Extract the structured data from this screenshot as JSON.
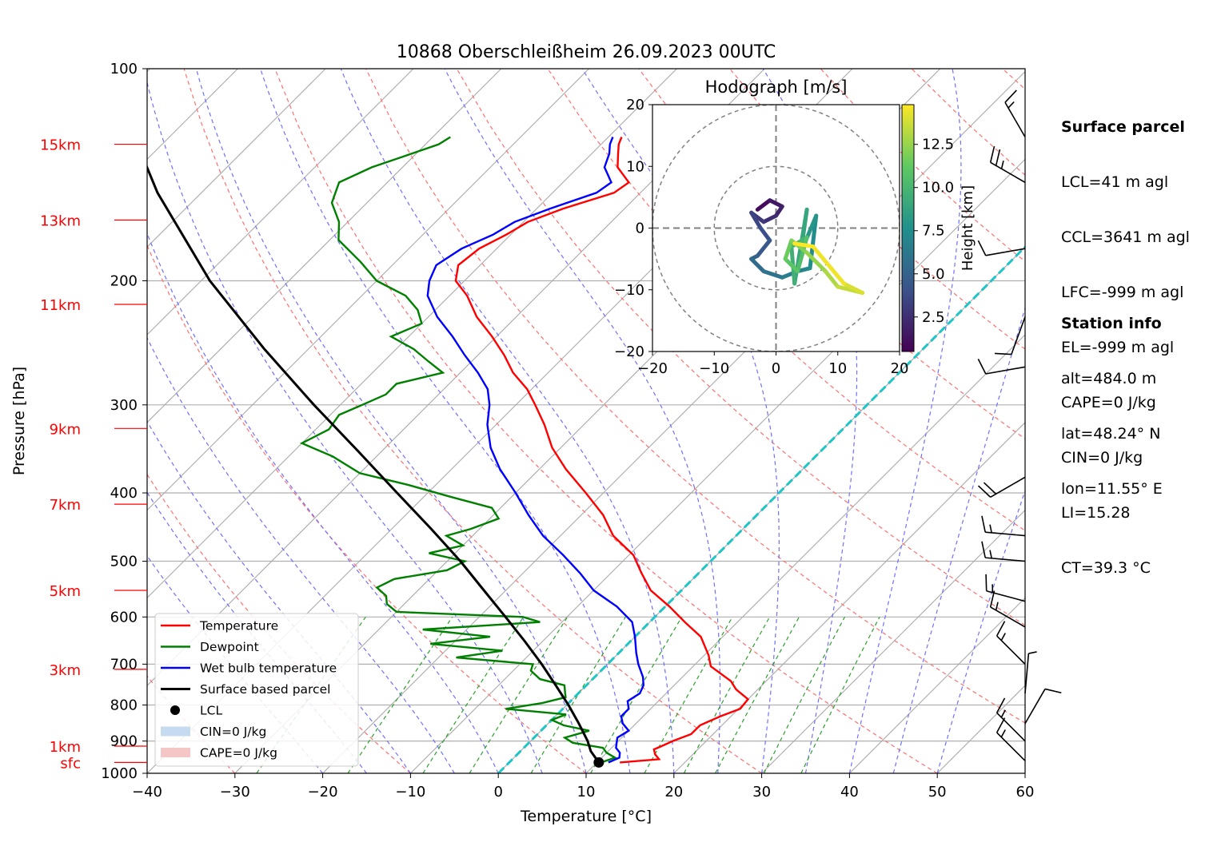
{
  "chart_data": {
    "type": "line",
    "title": "10868 Oberschleißheim 26.09.2023 00UTC",
    "xlabel": "Temperature [°C]",
    "ylabel": "Pressure [hPa]",
    "xlim": [
      -40,
      60
    ],
    "ylim": [
      1000,
      100
    ],
    "y_scale": "log",
    "skew": "skew-T log-p",
    "x_ticks": [
      "−40",
      "−30",
      "−20",
      "−10",
      "0",
      "10",
      "20",
      "30",
      "40",
      "50",
      "60"
    ],
    "y_ticks": [
      "100",
      "200",
      "300",
      "400",
      "500",
      "600",
      "700",
      "800",
      "900",
      "1000"
    ],
    "height_labels": [
      {
        "label": "15km",
        "p": 128
      },
      {
        "label": "13km",
        "p": 164
      },
      {
        "label": "11km",
        "p": 216
      },
      {
        "label": "9km",
        "p": 324
      },
      {
        "label": "7km",
        "p": 415
      },
      {
        "label": "5km",
        "p": 550
      },
      {
        "label": "3km",
        "p": 712
      },
      {
        "label": "1km",
        "p": 915
      },
      {
        "label": "sfc",
        "p": 965
      }
    ],
    "grid": true,
    "legend": {
      "placement": "lower-left",
      "entries": [
        "Temperature",
        "Dewpoint",
        "Wet bulb temperature",
        "Surface based parcel",
        "LCL",
        "CIN=0 J/kg",
        "CAPE=0 J/kg"
      ]
    },
    "colors": {
      "temperature": "#ff0000",
      "dewpoint": "#008000",
      "wetbulb": "#0000ff",
      "parcel": "#000000",
      "dry_adiabat": "#ff7070",
      "moist_adiabat": "#7070ff",
      "mixing_ratio": "#2ca02c",
      "isotherm": "#aaaaaa",
      "zero_isotherm": "#1fc5c5",
      "cin_fill": "#c6dbef",
      "cape_fill": "#f4c6c6"
    },
    "series": [
      {
        "name": "Temperature",
        "color": "#ff0000",
        "points": [
          [
            965,
            12.6
          ],
          [
            955,
            16.7
          ],
          [
            940,
            15.7
          ],
          [
            925,
            15.0
          ],
          [
            915,
            15.5
          ],
          [
            900,
            16.2
          ],
          [
            880,
            17.5
          ],
          [
            855,
            17.5
          ],
          [
            830,
            18.8
          ],
          [
            810,
            20.2
          ],
          [
            785,
            20.0
          ],
          [
            760,
            17.5
          ],
          [
            740,
            16.0
          ],
          [
            705,
            12.0
          ],
          [
            680,
            10.5
          ],
          [
            640,
            7.5
          ],
          [
            610,
            4.0
          ],
          [
            580,
            0.5
          ],
          [
            550,
            -3.5
          ],
          [
            520,
            -6.5
          ],
          [
            490,
            -9.5
          ],
          [
            460,
            -14.0
          ],
          [
            430,
            -17.5
          ],
          [
            400,
            -22.0
          ],
          [
            370,
            -27.0
          ],
          [
            345,
            -31.0
          ],
          [
            320,
            -34.5
          ],
          [
            300,
            -37.8
          ],
          [
            285,
            -40.5
          ],
          [
            270,
            -44.0
          ],
          [
            255,
            -47.0
          ],
          [
            240,
            -50.5
          ],
          [
            225,
            -54.5
          ],
          [
            210,
            -58.0
          ],
          [
            200,
            -61.0
          ],
          [
            190,
            -62.5
          ],
          [
            180,
            -62.0
          ],
          [
            172,
            -60.5
          ],
          [
            165,
            -59.5
          ],
          [
            158,
            -57.0
          ],
          [
            150,
            -53.0
          ],
          [
            145,
            -52.5
          ],
          [
            138,
            -55.5
          ],
          [
            132,
            -57.0
          ],
          [
            128,
            -58.0
          ],
          [
            125,
            -58.5
          ]
        ]
      },
      {
        "name": "Dewpoint",
        "color": "#008000",
        "points": [
          [
            965,
            10.5
          ],
          [
            950,
            11.5
          ],
          [
            935,
            10.0
          ],
          [
            920,
            9.0
          ],
          [
            905,
            5.0
          ],
          [
            890,
            3.5
          ],
          [
            870,
            5.5
          ],
          [
            855,
            2.0
          ],
          [
            840,
            0.0
          ],
          [
            825,
            1.0
          ],
          [
            810,
            -6.5
          ],
          [
            795,
            -3.0
          ],
          [
            780,
            -1.0
          ],
          [
            770,
            -1.5
          ],
          [
            750,
            -2.5
          ],
          [
            735,
            -6.0
          ],
          [
            715,
            -8.0
          ],
          [
            700,
            -8.5
          ],
          [
            685,
            -18.0
          ],
          [
            670,
            -13.5
          ],
          [
            655,
            -22.5
          ],
          [
            640,
            -16.5
          ],
          [
            625,
            -25.0
          ],
          [
            610,
            -12.5
          ],
          [
            600,
            -15.0
          ],
          [
            590,
            -30.0
          ],
          [
            575,
            -32.0
          ],
          [
            560,
            -33.0
          ],
          [
            545,
            -35.0
          ],
          [
            530,
            -34.0
          ],
          [
            515,
            -29.0
          ],
          [
            500,
            -28.0
          ],
          [
            487,
            -33.0
          ],
          [
            475,
            -30.0
          ],
          [
            460,
            -33.0
          ],
          [
            450,
            -31.0
          ],
          [
            435,
            -29.0
          ],
          [
            420,
            -31.0
          ],
          [
            405,
            -37.0
          ],
          [
            390,
            -43.0
          ],
          [
            375,
            -50.0
          ],
          [
            355,
            -55.0
          ],
          [
            340,
            -60.0
          ],
          [
            325,
            -58.5
          ],
          [
            310,
            -59.0
          ],
          [
            300,
            -57.5
          ],
          [
            290,
            -56.0
          ],
          [
            280,
            -56.0
          ],
          [
            270,
            -52.0
          ],
          [
            260,
            -55.0
          ],
          [
            250,
            -58.0
          ],
          [
            240,
            -62.0
          ],
          [
            230,
            -60.0
          ],
          [
            220,
            -62.0
          ],
          [
            210,
            -65.0
          ],
          [
            200,
            -70.0
          ],
          [
            188,
            -74.0
          ],
          [
            175,
            -79.0
          ],
          [
            165,
            -81.0
          ],
          [
            155,
            -84.0
          ],
          [
            145,
            -85.5
          ],
          [
            138,
            -83.5
          ],
          [
            132,
            -80.5
          ],
          [
            128,
            -78.5
          ],
          [
            125,
            -78.0
          ]
        ]
      },
      {
        "name": "Wet bulb temperature",
        "color": "#0000ff",
        "points": [
          [
            965,
            11.3
          ],
          [
            950,
            12.0
          ],
          [
            935,
            11.5
          ],
          [
            920,
            10.5
          ],
          [
            905,
            10.0
          ],
          [
            890,
            9.5
          ],
          [
            870,
            10.0
          ],
          [
            850,
            8.5
          ],
          [
            830,
            7.5
          ],
          [
            810,
            7.5
          ],
          [
            790,
            6.5
          ],
          [
            770,
            7.0
          ],
          [
            750,
            6.5
          ],
          [
            730,
            5.5
          ],
          [
            700,
            3.5
          ],
          [
            675,
            2.0
          ],
          [
            640,
            0.0
          ],
          [
            610,
            -2.0
          ],
          [
            580,
            -5.5
          ],
          [
            550,
            -10.0
          ],
          [
            520,
            -13.5
          ],
          [
            490,
            -17.5
          ],
          [
            460,
            -22.0
          ],
          [
            430,
            -26.0
          ],
          [
            400,
            -30.0
          ],
          [
            370,
            -34.5
          ],
          [
            345,
            -38.0
          ],
          [
            320,
            -41.0
          ],
          [
            300,
            -43.0
          ],
          [
            285,
            -45.0
          ],
          [
            270,
            -48.0
          ],
          [
            255,
            -51.5
          ],
          [
            240,
            -55.0
          ],
          [
            225,
            -59.0
          ],
          [
            210,
            -62.5
          ],
          [
            200,
            -64.0
          ],
          [
            190,
            -65.0
          ],
          [
            180,
            -64.0
          ],
          [
            172,
            -62.0
          ],
          [
            165,
            -61.0
          ],
          [
            158,
            -58.5
          ],
          [
            150,
            -55.0
          ],
          [
            145,
            -54.5
          ],
          [
            138,
            -57.0
          ],
          [
            132,
            -58.0
          ],
          [
            128,
            -59.0
          ],
          [
            125,
            -59.5
          ]
        ]
      },
      {
        "name": "Surface based parcel",
        "color": "#000000",
        "points": [
          [
            965,
            10.2
          ],
          [
            930,
            8.0
          ],
          [
            900,
            6.5
          ],
          [
            850,
            3.5
          ],
          [
            800,
            0.2
          ],
          [
            750,
            -3.5
          ],
          [
            700,
            -7.5
          ],
          [
            650,
            -12.0
          ],
          [
            600,
            -17.0
          ],
          [
            550,
            -22.5
          ],
          [
            500,
            -28.5
          ],
          [
            450,
            -35.5
          ],
          [
            400,
            -43.5
          ],
          [
            350,
            -52.5
          ],
          [
            300,
            -63.0
          ],
          [
            250,
            -75.0
          ],
          [
            200,
            -89.0
          ],
          [
            150,
            -105.0
          ],
          [
            120,
            -116.0
          ],
          [
            100,
            -125.0
          ]
        ]
      }
    ],
    "lcl_point": {
      "p": 965,
      "t": 10.2
    },
    "hodograph": {
      "title": "Hodograph [m/s]",
      "xlim": [
        -20,
        20
      ],
      "ylim": [
        -20,
        20
      ],
      "ticks": [
        "−20",
        "−10",
        "0",
        "10",
        "20"
      ],
      "rings": [
        10,
        20
      ],
      "colorbar_label": "Height [km]",
      "colorbar_ticks": [
        "2.5",
        "5.0",
        "7.5",
        "10.0",
        "12.5"
      ],
      "colorbar_range": [
        0.5,
        14.8
      ],
      "points": [
        [
          -3.0,
          3.0,
          0.5
        ],
        [
          -1.0,
          4.5,
          1.0
        ],
        [
          1.0,
          3.5,
          1.5
        ],
        [
          0.0,
          2.0,
          2.0
        ],
        [
          -2.0,
          1.0,
          2.5
        ],
        [
          -4.0,
          2.5,
          3.0
        ],
        [
          -2.5,
          0.0,
          3.5
        ],
        [
          -1.0,
          -2.0,
          4.0
        ],
        [
          -3.0,
          -4.5,
          4.5
        ],
        [
          -4.0,
          -5.0,
          5.0
        ],
        [
          -2.0,
          -7.0,
          5.5
        ],
        [
          1.0,
          -8.0,
          6.0
        ],
        [
          3.5,
          -7.0,
          6.5
        ],
        [
          5.5,
          -6.5,
          7.0
        ],
        [
          6.5,
          2.0,
          7.5
        ],
        [
          4.0,
          -4.0,
          8.0
        ],
        [
          5.0,
          3.0,
          8.5
        ],
        [
          3.0,
          -9.0,
          9.0
        ],
        [
          2.5,
          -3.0,
          9.5
        ],
        [
          5.0,
          -1.5,
          10.0
        ],
        [
          3.5,
          -7.0,
          10.5
        ],
        [
          1.5,
          -5.0,
          11.0
        ],
        [
          2.5,
          -2.0,
          11.5
        ],
        [
          5.0,
          -4.0,
          12.0
        ],
        [
          8.0,
          -7.0,
          12.5
        ],
        [
          10.0,
          -9.5,
          13.0
        ],
        [
          14.0,
          -10.5,
          13.5
        ],
        [
          11.0,
          -9.0,
          14.0
        ],
        [
          6.0,
          -3.0,
          14.5
        ],
        [
          3.0,
          -2.5,
          14.8
        ]
      ]
    }
  },
  "info_panel": {
    "surface_parcel_title": "Surface parcel",
    "surface_parcel": [
      "LCL=41 m agl",
      "CCL=3641 m agl",
      "LFC=-999 m agl",
      "EL=-999 m agl",
      "CAPE=0 J/kg",
      "CIN=0 J/kg",
      "LI=15.28",
      "CT=39.3 °C"
    ],
    "station_title": "Station info",
    "station": [
      "alt=484.0 m",
      "lat=48.24° N",
      "lon=11.55° E"
    ]
  },
  "wind_barbs": [
    {
      "p": 125,
      "dir": 330,
      "speed_kt": 15
    },
    {
      "p": 145,
      "dir": 300,
      "speed_kt": 25
    },
    {
      "p": 180,
      "dir": 260,
      "speed_kt": 10
    },
    {
      "p": 225,
      "dir": 200,
      "speed_kt": 10
    },
    {
      "p": 265,
      "dir": 260,
      "speed_kt": 10
    },
    {
      "p": 380,
      "dir": 240,
      "speed_kt": 20
    },
    {
      "p": 460,
      "dir": 275,
      "speed_kt": 15
    },
    {
      "p": 500,
      "dir": 275,
      "speed_kt": 15
    },
    {
      "p": 570,
      "dir": 285,
      "speed_kt": 15
    },
    {
      "p": 620,
      "dir": 300,
      "speed_kt": 15
    },
    {
      "p": 700,
      "dir": 315,
      "speed_kt": 15
    },
    {
      "p": 770,
      "dir": 5,
      "speed_kt": 5
    },
    {
      "p": 850,
      "dir": 30,
      "speed_kt": 10
    },
    {
      "p": 900,
      "dir": 315,
      "speed_kt": 15
    },
    {
      "p": 960,
      "dir": 315,
      "speed_kt": 15
    }
  ]
}
